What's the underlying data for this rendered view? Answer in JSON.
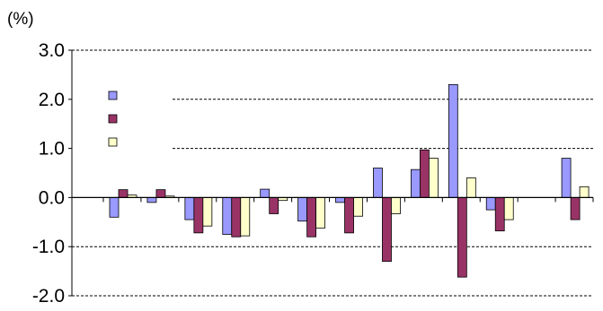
{
  "chart_data": {
    "type": "bar",
    "unit_label": "(%)",
    "ylim": [
      -2.0,
      3.0
    ],
    "y_ticks": [
      "3.0",
      "2.0",
      "1.0",
      "0.0",
      "-1.0",
      "-2.0"
    ],
    "y_tick_values": [
      3.0,
      2.0,
      1.0,
      0.0,
      -1.0,
      -2.0
    ],
    "grid": true,
    "legend": "top-left",
    "categories": [
      "",
      "",
      "",
      "",
      "",
      "",
      "",
      "",
      "",
      "",
      "",
      "",
      ""
    ],
    "series": [
      {
        "color": "#9999ff",
        "values": [
          -0.4,
          -0.1,
          -0.45,
          -0.75,
          0.17,
          -0.48,
          -0.1,
          0.6,
          0.57,
          2.3,
          -0.25,
          0.0,
          0.8
        ]
      },
      {
        "color": "#993366",
        "values": [
          0.16,
          0.16,
          -0.72,
          -0.8,
          -0.33,
          -0.8,
          -0.72,
          -1.3,
          0.97,
          -1.62,
          -0.68,
          0.0,
          -0.45
        ]
      },
      {
        "color": "#ffffcc",
        "values": [
          0.05,
          0.03,
          -0.58,
          -0.78,
          -0.06,
          -0.62,
          -0.38,
          -0.33,
          0.8,
          0.4,
          -0.45,
          0.0,
          0.22
        ]
      }
    ]
  }
}
